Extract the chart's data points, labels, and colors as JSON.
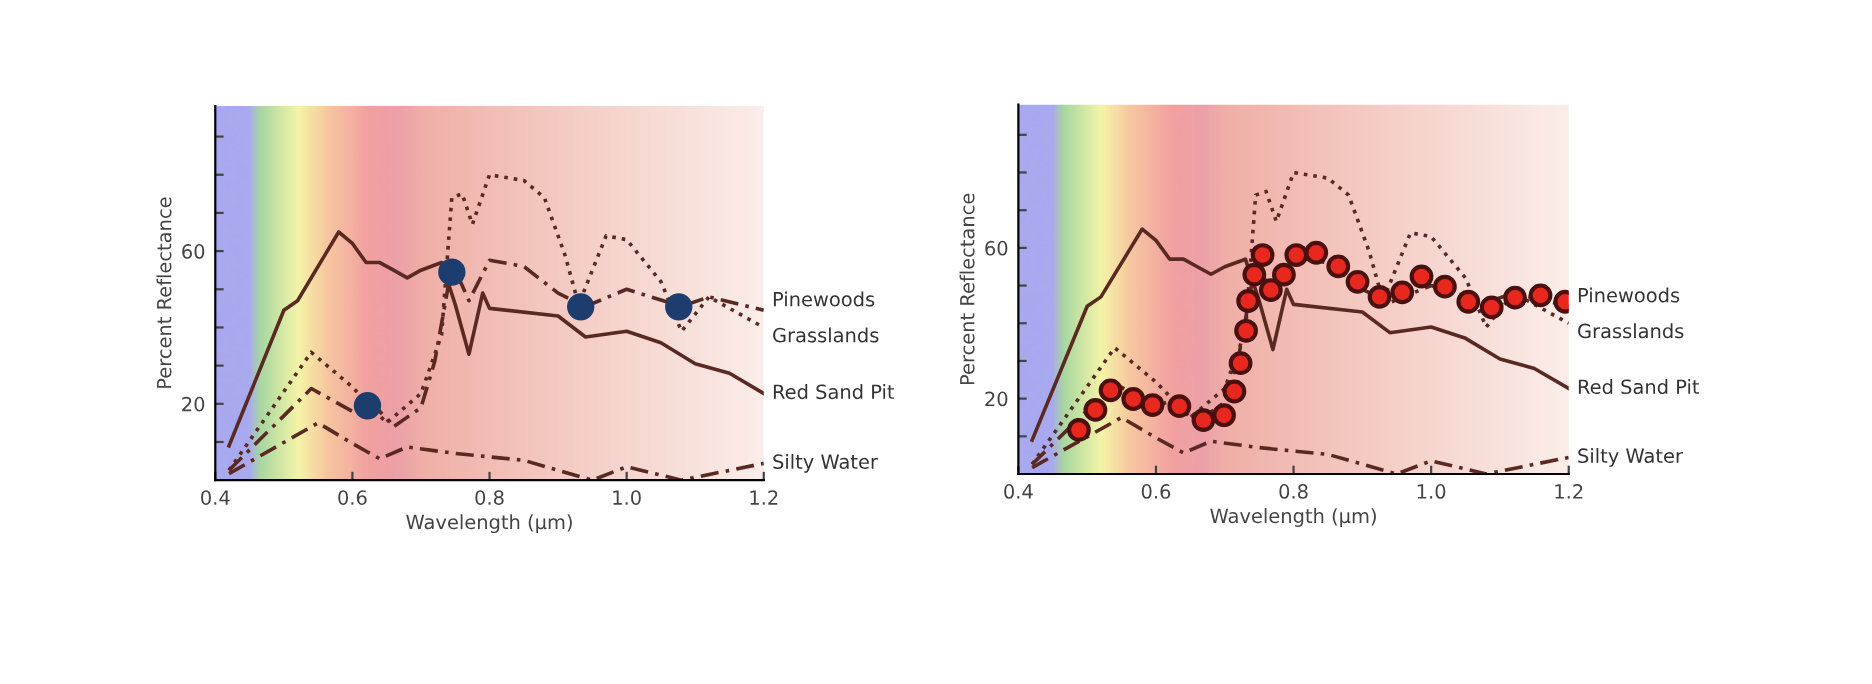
{
  "chart_data": [
    {
      "type": "line",
      "xlabel": "Wavelength (µm)",
      "ylabel": "Percent Reflectance",
      "xlim": [
        0.4,
        1.2
      ],
      "ylim": [
        0,
        98
      ],
      "xticks": [
        0.4,
        0.6,
        0.8,
        {
          "value": 1,
          "label": "1.0"
        },
        1.2
      ],
      "yticks": [
        {
          "value": 10,
          "label": null
        },
        20,
        {
          "value": 30,
          "label": null
        },
        {
          "value": 40,
          "label": null
        },
        {
          "value": 50,
          "label": null
        },
        60,
        {
          "value": 70,
          "label": null
        },
        {
          "value": 80,
          "label": null
        },
        {
          "value": 90,
          "label": null
        }
      ],
      "grid": false,
      "legend": false,
      "series": [
        {
          "name": "Pinewoods",
          "color": "#5a2a22",
          "line_style": "dashed",
          "x": [
            0.42,
            0.54,
            0.6,
            0.63,
            0.66,
            0.7,
            0.72,
            0.74,
            0.75,
            0.77,
            0.8,
            0.85,
            0.9,
            0.94,
            1.0,
            1.08,
            1.12,
            1.2
          ],
          "values": [
            2.6,
            24,
            18,
            20,
            14,
            19,
            31,
            51,
            55,
            47,
            57.6,
            56,
            49,
            45.5,
            50,
            45.5,
            48,
            44.5
          ]
        },
        {
          "name": "Grasslands",
          "color": "#5a2a22",
          "line_style": "dotted",
          "x": [
            0.42,
            0.54,
            0.6,
            0.65,
            0.7,
            0.73,
            0.745,
            0.76,
            0.775,
            0.8,
            0.85,
            0.88,
            0.91,
            0.93,
            0.97,
            1.0,
            1.05,
            1.08,
            1.12,
            1.2
          ],
          "values": [
            2.6,
            33.5,
            24.4,
            15,
            22.7,
            38,
            74,
            75,
            67,
            80,
            78.5,
            74,
            59,
            46,
            64,
            63,
            52,
            39,
            48,
            40
          ]
        },
        {
          "name": "Red Sand Pit",
          "color": "#5a2a22",
          "line_style": "solid",
          "x": [
            0.42,
            0.5,
            0.52,
            0.56,
            0.58,
            0.6,
            0.62,
            0.64,
            0.66,
            0.68,
            0.7,
            0.73,
            0.75,
            0.77,
            0.79,
            0.8,
            0.9,
            0.94,
            1.0,
            1.05,
            1.1,
            1.15,
            1.2
          ],
          "values": [
            9,
            44.5,
            47,
            59,
            65,
            62,
            57,
            57,
            55,
            53,
            55,
            57,
            46,
            33,
            49,
            45,
            43,
            37.5,
            39,
            36,
            30.5,
            28,
            22.7
          ]
        },
        {
          "name": "Silty Water",
          "color": "#5a2a22",
          "line_style": "dashed",
          "x": [
            0.42,
            0.55,
            0.6,
            0.64,
            0.68,
            0.75,
            0.85,
            0.95,
            1.0,
            1.08,
            1.2
          ],
          "values": [
            1.7,
            15,
            9.6,
            5.6,
            8.7,
            7,
            5.2,
            0,
            3.5,
            0,
            4.4
          ]
        },
        {
          "type": "scatter",
          "marker": "circle",
          "color": "#1c3d6e",
          "x": [
            0.622,
            0.745,
            0.933,
            1.076
          ],
          "values": [
            19.5,
            54.5,
            45.4,
            45.4
          ]
        }
      ]
    },
    {
      "type": "line",
      "xlabel": "Wavelength (µm)",
      "ylabel": "Percent Reflectance",
      "xlim": [
        0.4,
        1.2
      ],
      "ylim": [
        0,
        98
      ],
      "xticks": [
        0.4,
        0.6,
        0.8,
        {
          "value": 1,
          "label": "1.0"
        },
        1.2
      ],
      "yticks": [
        {
          "value": 10,
          "label": null
        },
        20,
        {
          "value": 30,
          "label": null
        },
        {
          "value": 40,
          "label": null
        },
        {
          "value": 50,
          "label": null
        },
        60,
        {
          "value": 70,
          "label": null
        },
        {
          "value": 80,
          "label": null
        },
        {
          "value": 90,
          "label": null
        }
      ],
      "grid": false,
      "legend": false,
      "series": [
        {
          "name": "Pinewoods",
          "color": "#5a2a22",
          "line_style": "dashed",
          "x": [
            0.42,
            0.54,
            0.6,
            0.63,
            0.66,
            0.7,
            0.72,
            0.74,
            0.75,
            0.77,
            0.8,
            0.85,
            0.9,
            0.94,
            1.0,
            1.08,
            1.12,
            1.2
          ],
          "values": [
            2.6,
            24,
            18,
            20,
            14,
            19,
            31,
            51,
            55,
            47,
            57.6,
            56,
            49,
            45.5,
            50,
            45.5,
            48,
            44.5
          ]
        },
        {
          "name": "Grasslands",
          "color": "#5a2a22",
          "line_style": "dotted",
          "x": [
            0.42,
            0.54,
            0.6,
            0.65,
            0.7,
            0.73,
            0.745,
            0.76,
            0.775,
            0.8,
            0.85,
            0.88,
            0.91,
            0.93,
            0.97,
            1.0,
            1.05,
            1.08,
            1.12,
            1.2
          ],
          "values": [
            2.6,
            33.5,
            24.4,
            15,
            22.7,
            38,
            74,
            75,
            67,
            80,
            78.5,
            74,
            59,
            46,
            64,
            63,
            52,
            39,
            48,
            40
          ]
        },
        {
          "name": "Red Sand Pit",
          "color": "#5a2a22",
          "line_style": "solid",
          "x": [
            0.42,
            0.5,
            0.52,
            0.56,
            0.58,
            0.6,
            0.62,
            0.64,
            0.66,
            0.68,
            0.7,
            0.73,
            0.75,
            0.77,
            0.79,
            0.8,
            0.9,
            0.94,
            1.0,
            1.05,
            1.1,
            1.15,
            1.2
          ],
          "values": [
            9,
            44.5,
            47,
            59,
            65,
            62,
            57,
            57,
            55,
            53,
            55,
            57,
            46,
            33,
            49,
            45,
            43,
            37.5,
            39,
            36,
            30.5,
            28,
            22.7
          ]
        },
        {
          "name": "Silty Water",
          "color": "#5a2a22",
          "line_style": "dashed",
          "x": [
            0.42,
            0.55,
            0.6,
            0.64,
            0.68,
            0.75,
            0.85,
            0.95,
            1.0,
            1.08,
            1.2
          ],
          "values": [
            1.7,
            15,
            9.6,
            5.6,
            8.7,
            7,
            5.2,
            0,
            3.5,
            0,
            4.4
          ]
        },
        {
          "type": "scatter",
          "marker": "circle",
          "color": "#e8281e",
          "x": [
            0.488,
            0.512,
            0.534,
            0.567,
            0.595,
            0.634,
            0.669,
            0.699,
            0.714,
            0.723,
            0.731,
            0.734,
            0.743,
            0.755,
            0.767,
            0.786,
            0.804,
            0.833,
            0.865,
            0.893,
            0.925,
            0.958,
            0.986,
            1.02,
            1.054,
            1.088,
            1.122,
            1.159,
            1.195
          ],
          "values": [
            11.7,
            17,
            22.2,
            19.9,
            18.3,
            18,
            14.3,
            15.6,
            21.9,
            29.4,
            38,
            45.9,
            52.9,
            58.1,
            48.8,
            52.9,
            58.1,
            58.7,
            55.1,
            51,
            47,
            48.2,
            52.4,
            49.7,
            45.7,
            44.2,
            46.8,
            47.4,
            45.7
          ]
        }
      ]
    }
  ]
}
